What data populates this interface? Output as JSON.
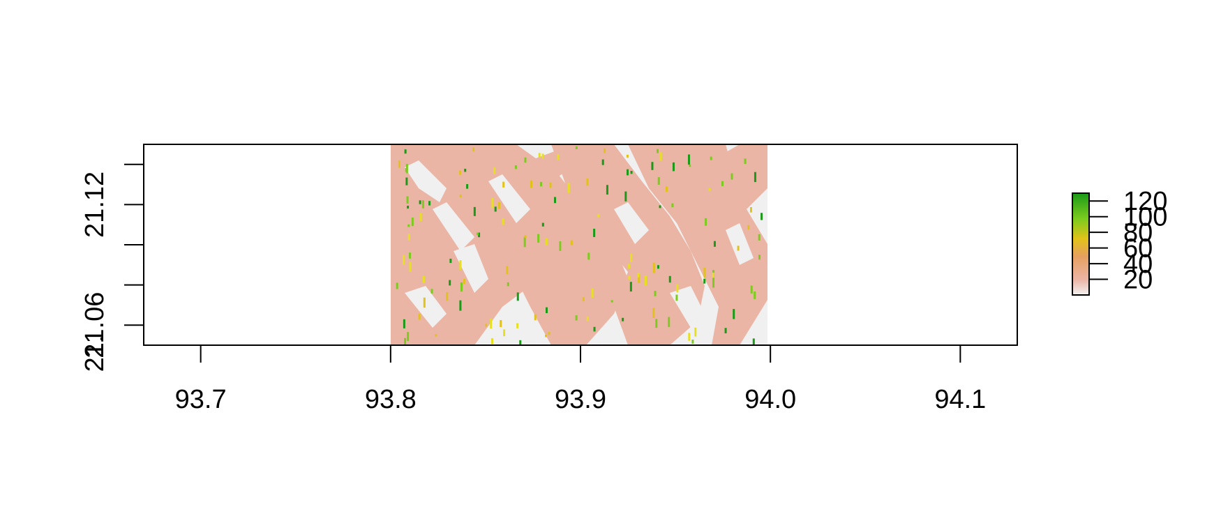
{
  "chart_data": {
    "type": "heatmap",
    "title": "",
    "xlabel": "",
    "ylabel": "",
    "xlim": [
      93.67,
      94.13
    ],
    "ylim": [
      21.05,
      21.15
    ],
    "raster_extent": {
      "x": [
        93.8,
        94.0
      ],
      "y": [
        21.05,
        21.15
      ]
    },
    "x_ticks": [
      93.7,
      93.8,
      93.9,
      94.0,
      94.1
    ],
    "x_tick_labels": [
      "93.7",
      "93.8",
      "93.9",
      "94.0",
      "94.1"
    ],
    "y_ticks": [
      21.06,
      21.08,
      21.1,
      21.12,
      21.14
    ],
    "y_tick_labels": [
      "21.06",
      "21.12"
    ],
    "y_tick_labels_at": [
      21.06,
      21.12
    ],
    "y_tick_label_extra": "21.",
    "legend": {
      "placement": "right",
      "range": [
        0,
        130
      ],
      "ticks": [
        20,
        40,
        60,
        80,
        100,
        120
      ],
      "tick_labels": [
        "20",
        "40",
        "60",
        "80",
        "100",
        "120"
      ],
      "palette": [
        "#f2f2f2",
        "#ebb5a5",
        "#e6a060",
        "#e2c21a",
        "#7ccb1e",
        "#1a9a18"
      ]
    },
    "dominant_values": {
      "light": 5,
      "salmon": 20
    },
    "background_color": "#f0f0f0",
    "salmon_color": "#ebb5a5"
  }
}
